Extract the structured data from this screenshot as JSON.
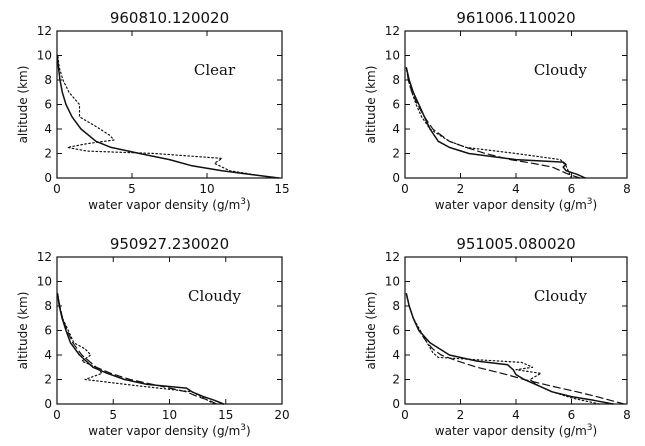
{
  "chart_data": [
    {
      "type": "line",
      "title": "960810.120020",
      "annotation": "Clear",
      "xlabel": "water vapor density (g/m",
      "xlabel_sup": "3",
      "xlabel_end": ")",
      "ylabel": "altitude (km)",
      "xlim": [
        0,
        15
      ],
      "ylim": [
        0,
        12
      ],
      "xticks": [
        0,
        5,
        10,
        15
      ],
      "yticks": [
        0,
        2,
        4,
        6,
        8,
        10,
        12
      ],
      "grid": false,
      "series": [
        {
          "style": "solid",
          "y": [
            0,
            0.3,
            0.6,
            1.0,
            1.5,
            2.0,
            2.5,
            3.0,
            4.0,
            5.0,
            6.0,
            7.0,
            8.0,
            9.0,
            9.5,
            10.0
          ],
          "x": [
            14.8,
            12.8,
            11.0,
            9.0,
            7.5,
            5.5,
            3.6,
            2.6,
            1.6,
            1.0,
            0.6,
            0.35,
            0.2,
            0.1,
            0.05,
            0.02
          ]
        },
        {
          "style": "dotted",
          "y": [
            0,
            0.6,
            1.2,
            1.6,
            2.0,
            2.2,
            2.5,
            2.8,
            3.1,
            3.5,
            4.2,
            5.0,
            6.0,
            7.0,
            8.0,
            9.0,
            10.0
          ],
          "x": [
            14.5,
            11.5,
            10.5,
            11.0,
            6.5,
            2.0,
            0.7,
            2.0,
            3.8,
            3.5,
            2.6,
            1.5,
            1.5,
            0.8,
            0.4,
            0.15,
            0.05
          ]
        }
      ]
    },
    {
      "type": "line",
      "title": "961006.110020",
      "annotation": "Cloudy",
      "xlabel": "water vapor density (g/m",
      "xlabel_sup": "3",
      "xlabel_end": ")",
      "ylabel": "altitude (km)",
      "xlim": [
        0,
        8
      ],
      "ylim": [
        0,
        12
      ],
      "xticks": [
        0,
        2,
        4,
        6,
        8
      ],
      "yticks": [
        0,
        2,
        4,
        6,
        8,
        10,
        12
      ],
      "grid": false,
      "series": [
        {
          "style": "solid",
          "y": [
            0,
            0.3,
            0.6,
            0.9,
            1.1,
            1.3,
            1.5,
            2.0,
            2.5,
            3.0,
            4.0,
            5.0,
            6.0,
            7.0,
            8.0,
            9.0
          ],
          "x": [
            6.5,
            6.2,
            5.8,
            5.7,
            5.8,
            5.7,
            4.0,
            2.3,
            1.6,
            1.2,
            0.9,
            0.7,
            0.5,
            0.3,
            0.15,
            0.05
          ]
        },
        {
          "style": "dashed",
          "y": [
            0,
            0.3,
            0.6,
            0.9,
            1.2,
            1.5,
            2.0,
            2.5,
            3.0,
            4.0,
            5.0,
            6.0,
            7.0,
            8.0,
            9.0
          ],
          "x": [
            6.3,
            5.9,
            5.6,
            5.3,
            4.6,
            3.8,
            2.9,
            2.2,
            1.6,
            1.0,
            0.7,
            0.45,
            0.25,
            0.12,
            0.05
          ]
        },
        {
          "style": "dotted",
          "y": [
            0,
            0.5,
            1.0,
            1.5,
            2.0,
            2.5,
            3.0,
            4.0,
            5.0,
            6.0,
            7.0,
            8.0,
            9.0
          ],
          "x": [
            6.0,
            5.9,
            5.8,
            5.6,
            4.0,
            2.2,
            1.6,
            0.9,
            0.6,
            0.4,
            0.25,
            0.12,
            0.05
          ]
        }
      ]
    },
    {
      "type": "line",
      "title": "950927.230020",
      "annotation": "Cloudy",
      "xlabel": "water vapor density (g/m",
      "xlabel_sup": "3",
      "xlabel_end": ")",
      "ylabel": "altitude (km)",
      "xlim": [
        0,
        20
      ],
      "ylim": [
        0,
        12
      ],
      "xticks": [
        0,
        5,
        10,
        15,
        20
      ],
      "yticks": [
        0,
        2,
        4,
        6,
        8,
        10,
        12
      ],
      "grid": false,
      "series": [
        {
          "style": "solid",
          "y": [
            0,
            0.3,
            0.6,
            1.0,
            1.3,
            1.6,
            2.0,
            2.5,
            3.0,
            4.0,
            5.0,
            6.0,
            7.0,
            8.0,
            9.0
          ],
          "x": [
            14.8,
            14.0,
            13.0,
            12.0,
            11.5,
            8.0,
            6.0,
            4.5,
            3.2,
            2.0,
            1.2,
            0.8,
            0.45,
            0.2,
            0.05
          ]
        },
        {
          "style": "dashed",
          "y": [
            0,
            0.3,
            0.6,
            1.0,
            1.5,
            2.0,
            2.5,
            3.0,
            4.0,
            5.0,
            6.0,
            7.0,
            8.0,
            9.0
          ],
          "x": [
            14.2,
            13.5,
            12.5,
            11.5,
            9.0,
            6.5,
            4.8,
            3.5,
            2.2,
            1.4,
            0.9,
            0.5,
            0.25,
            0.05
          ]
        },
        {
          "style": "dotted",
          "y": [
            0,
            0.5,
            1.0,
            1.5,
            2.0,
            2.5,
            3.0,
            3.5,
            4.0,
            4.5,
            5.0,
            6.0,
            7.0,
            8.0,
            9.0
          ],
          "x": [
            14.0,
            13.0,
            12.0,
            7.0,
            2.5,
            4.0,
            3.5,
            2.2,
            3.0,
            2.5,
            1.5,
            1.0,
            0.5,
            0.25,
            0.05
          ]
        }
      ]
    },
    {
      "type": "line",
      "title": "951005.080020",
      "annotation": "Cloudy",
      "xlabel": "water vapor density (g/m",
      "xlabel_sup": "3",
      "xlabel_end": ")",
      "ylabel": "altitude (km)",
      "xlim": [
        0,
        8
      ],
      "ylim": [
        0,
        12
      ],
      "xticks": [
        0,
        2,
        4,
        6,
        8
      ],
      "yticks": [
        0,
        2,
        4,
        6,
        8,
        10,
        12
      ],
      "grid": false,
      "series": [
        {
          "style": "solid",
          "y": [
            0,
            0.3,
            0.6,
            1.0,
            1.5,
            2.0,
            2.4,
            2.8,
            3.0,
            3.2,
            3.5,
            4.0,
            5.0,
            6.0,
            7.0,
            8.0,
            9.0
          ],
          "x": [
            7.5,
            6.8,
            6.0,
            5.3,
            4.8,
            4.3,
            4.0,
            3.9,
            3.8,
            3.7,
            2.6,
            1.6,
            0.9,
            0.5,
            0.3,
            0.15,
            0.05
          ]
        },
        {
          "style": "dashed",
          "y": [
            0,
            0.3,
            0.6,
            1.0,
            1.5,
            2.0,
            2.5,
            3.0,
            3.5,
            4.0,
            4.5,
            5.0,
            6.0,
            7.0,
            8.0,
            9.0
          ],
          "x": [
            7.9,
            7.4,
            6.9,
            6.2,
            5.2,
            4.3,
            3.5,
            2.6,
            1.9,
            1.3,
            1.0,
            0.8,
            0.5,
            0.3,
            0.15,
            0.05
          ]
        },
        {
          "style": "dotted",
          "y": [
            0,
            0.5,
            1.0,
            1.5,
            2.0,
            2.5,
            2.8,
            3.0,
            3.4,
            3.8,
            4.2,
            5.0,
            6.0,
            7.0,
            8.0,
            9.0
          ],
          "x": [
            7.0,
            6.0,
            5.3,
            4.8,
            4.5,
            4.9,
            4.0,
            4.6,
            4.2,
            1.2,
            1.0,
            0.8,
            0.55,
            0.3,
            0.15,
            0.05
          ]
        }
      ]
    }
  ]
}
